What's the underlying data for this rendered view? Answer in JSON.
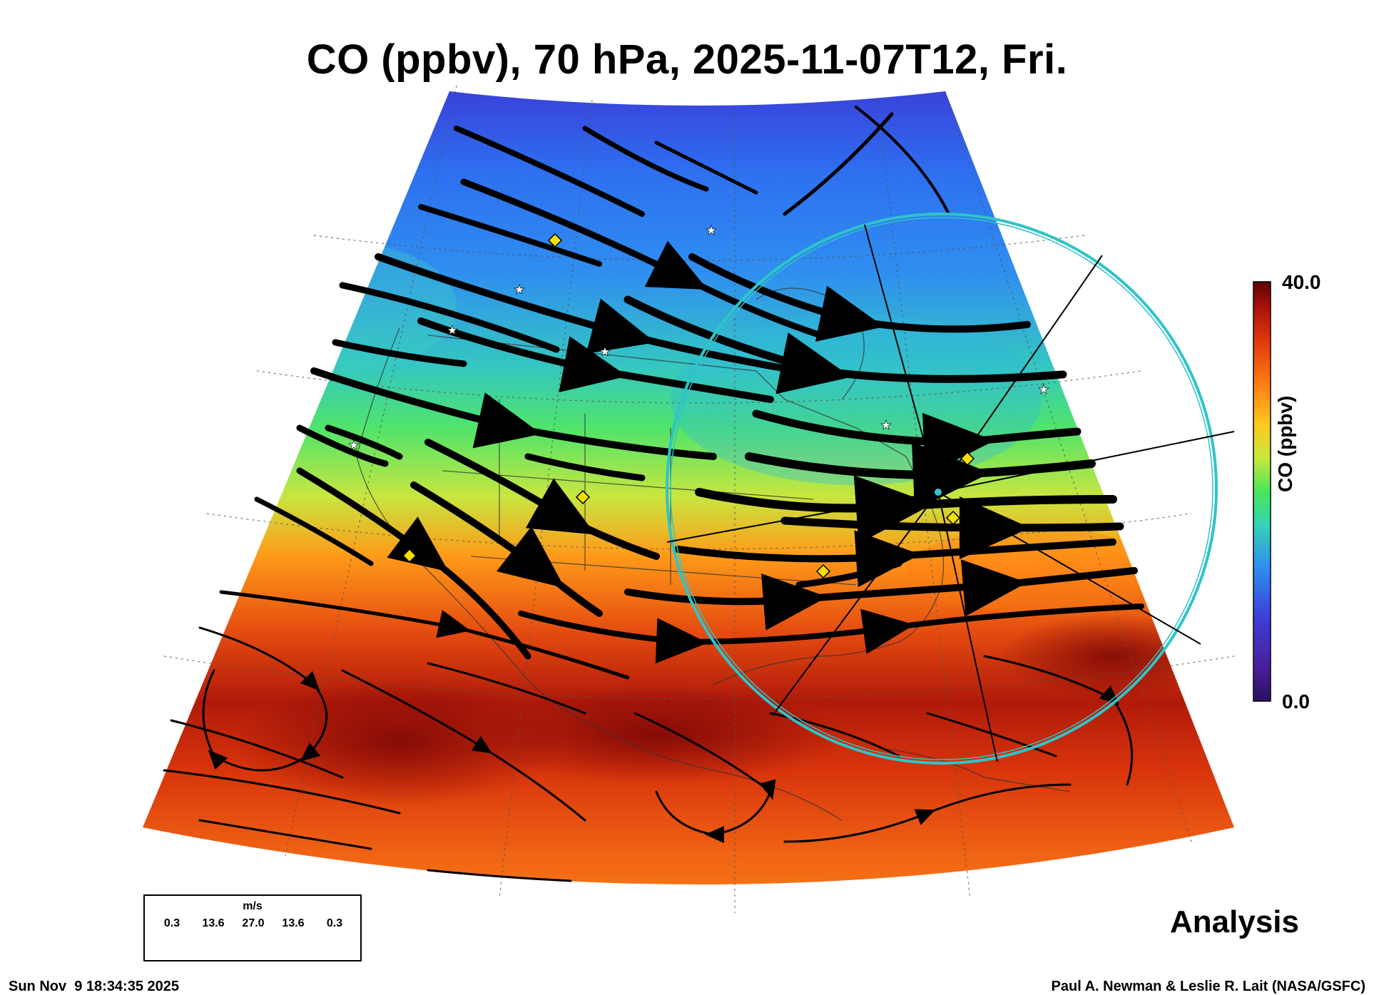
{
  "title": "CO (ppbv), 70 hPa, 2025-11-07T12, Fri.",
  "colorbar": {
    "title": "CO (ppbv)",
    "max_label": "40.0",
    "min_label": "0.0",
    "stops": [
      "#4a1e8c",
      "#3c3fd8",
      "#2f7bf0",
      "#2fb0e6",
      "#34d3b4",
      "#49e65a",
      "#b7e83c",
      "#ffd21e",
      "#ff8a14",
      "#f05014",
      "#c8200c",
      "#8a0a08",
      "#5a0506"
    ]
  },
  "wind_legend": {
    "unit": "m/s",
    "values": [
      "0.3",
      "13.6",
      "27.0",
      "13.6",
      "0.3"
    ]
  },
  "analysis_label": "Analysis",
  "timestamp": "Sun Nov  9 18:34:35 2025",
  "credit": "Paul A. Newman & Leslie R. Lait (NASA/GSFC)",
  "ring_color": "#2fc4c8"
}
